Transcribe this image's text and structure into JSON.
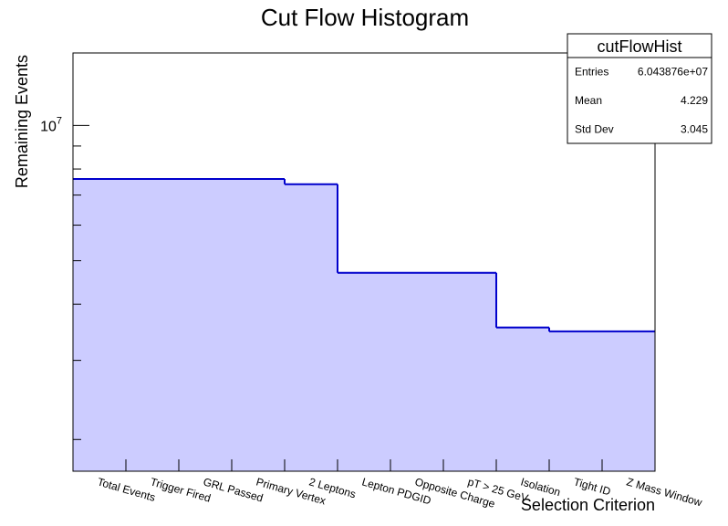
{
  "chart_data": {
    "type": "bar",
    "histogram_style": "step-filled",
    "title": "Cut Flow Histogram",
    "xlabel": "Selection Criterion",
    "ylabel": "Remaining Events",
    "y_scale": "log",
    "ylim": [
      1700000,
      14500000
    ],
    "y_tick_label": {
      "base": "10",
      "exponent": "7",
      "value": 10000000
    },
    "categories": [
      "Total Events",
      "Trigger Fired",
      "GRL Passed",
      "Primary Vertex",
      "2 Leptons",
      "Lepton PDGID",
      "Opposite Charge",
      "pT > 25 GeV",
      "Isolation",
      "Tight ID",
      "Z Mass Window"
    ],
    "values": [
      7600000,
      7600000,
      7600000,
      7600000,
      7400000,
      4700000,
      4700000,
      4700000,
      3550000,
      3480000,
      3480000
    ],
    "grid": false,
    "legend": "none",
    "colors": {
      "line": "#0000cc",
      "fill": "#ccccff",
      "frame": "#000000"
    },
    "stats_box": {
      "name": "cutFlowHist",
      "rows": [
        {
          "label": "Entries",
          "value": "6.043876e+07"
        },
        {
          "label": "Mean",
          "value": "4.229"
        },
        {
          "label": "Std Dev",
          "value": "3.045"
        }
      ],
      "placement": "top-right"
    }
  }
}
